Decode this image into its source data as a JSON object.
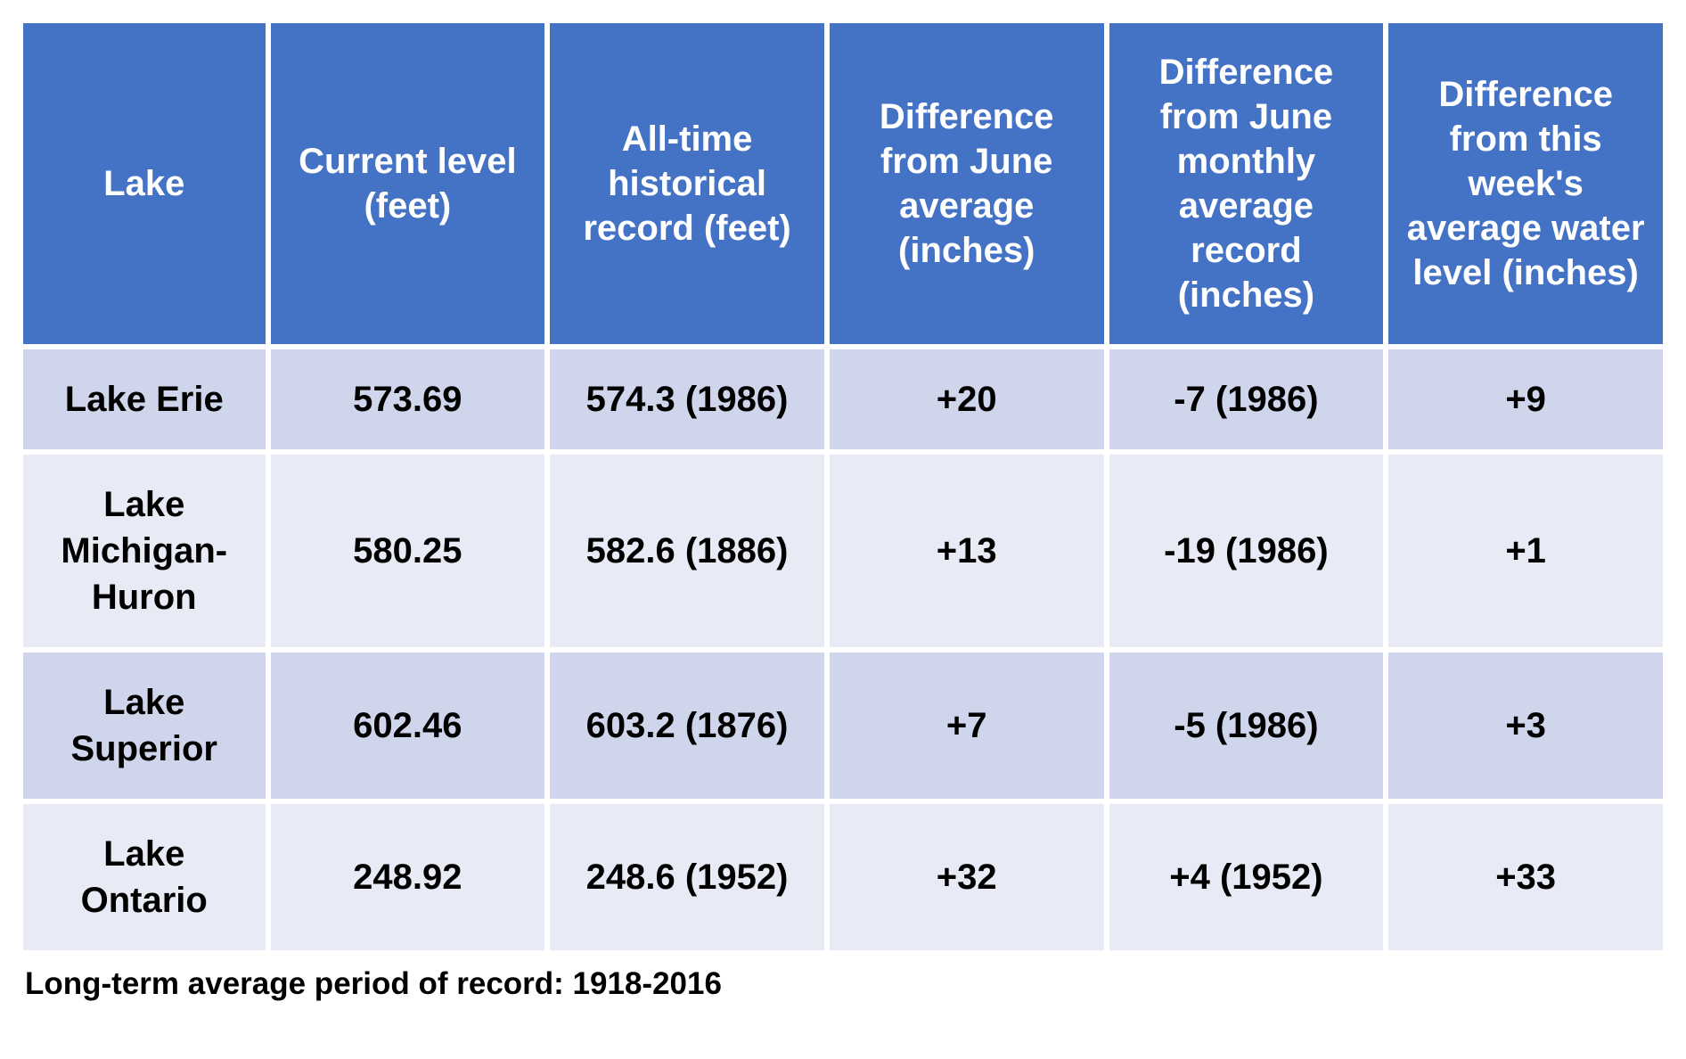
{
  "table": {
    "header_bg_color": "#4472c4",
    "header_text_color": "#ffffff",
    "row_odd_bg_color": "#cfd5ea",
    "row_even_bg_color": "#e8ebf5",
    "cell_text_color": "#000000",
    "header_font_size": 40,
    "cell_font_size": 40,
    "columns": [
      "Lake",
      "Current level (feet)",
      "All-time historical record (feet)",
      "Difference from June average (inches)",
      "Difference from June monthly average record (inches)",
      "Difference from this week's average water level (inches)"
    ],
    "rows": [
      {
        "lake": "Lake Erie",
        "current_level": "573.69",
        "alltime_record": "574.3 (1986)",
        "diff_june_avg": "+20",
        "diff_june_record": "-7 (1986)",
        "diff_week_avg": "+9"
      },
      {
        "lake": "Lake Michigan-Huron",
        "current_level": "580.25",
        "alltime_record": "582.6 (1886)",
        "diff_june_avg": "+13",
        "diff_june_record": "-19 (1986)",
        "diff_week_avg": "+1"
      },
      {
        "lake": "Lake Superior",
        "current_level": "602.46",
        "alltime_record": "603.2 (1876)",
        "diff_june_avg": "+7",
        "diff_june_record": "-5 (1986)",
        "diff_week_avg": "+3"
      },
      {
        "lake": "Lake Ontario",
        "current_level": "248.92",
        "alltime_record": "248.6 (1952)",
        "diff_june_avg": "+32",
        "diff_june_record": "+4 (1952)",
        "diff_week_avg": "+33"
      }
    ]
  },
  "footnote": "Long-term average period of record: 1918-2016"
}
